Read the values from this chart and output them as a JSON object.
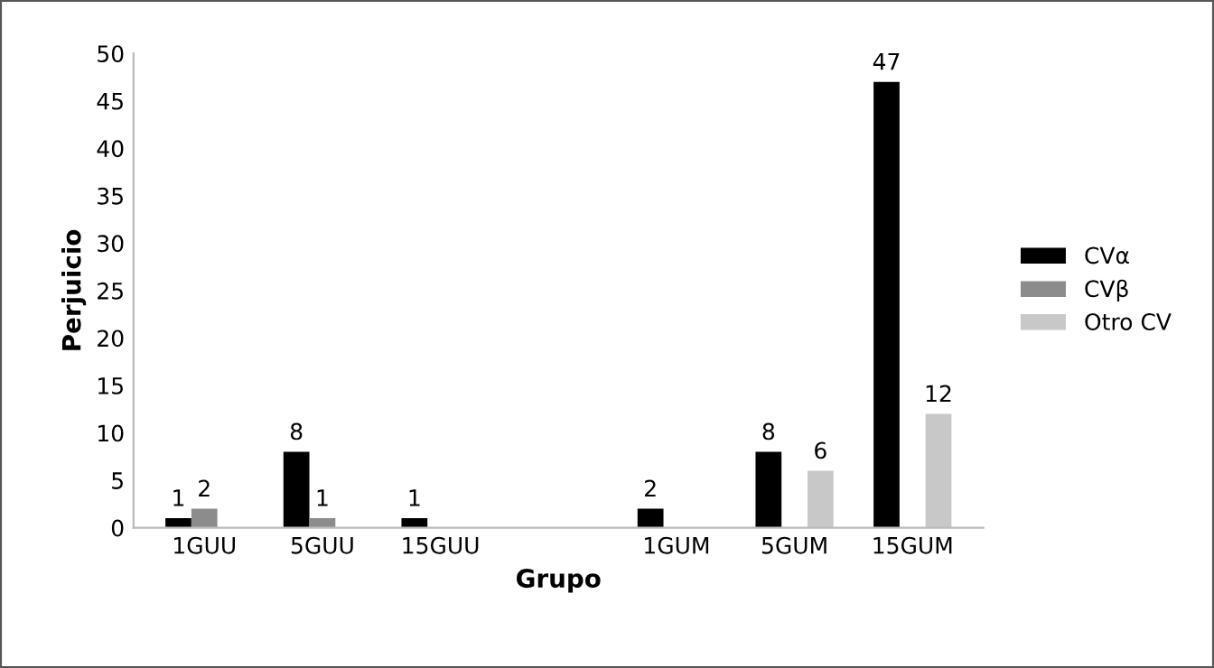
{
  "chart_data": {
    "type": "bar",
    "xlabel": "Grupo",
    "ylabel": "Perjuicio",
    "categories": [
      "1GUU",
      "5GUU",
      "15GUU",
      null,
      "1GUM",
      "5GUM",
      "15GUM"
    ],
    "series": [
      {
        "name": "CVα",
        "color": "#000000",
        "values": [
          1,
          8,
          1,
          null,
          2,
          8,
          47
        ]
      },
      {
        "name": "CVβ",
        "color": "#8c8c8c",
        "values": [
          2,
          1,
          null,
          null,
          null,
          null,
          null
        ]
      },
      {
        "name": "Otro CV",
        "color": "#c8c8c8",
        "values": [
          null,
          null,
          null,
          null,
          null,
          6,
          12
        ]
      }
    ],
    "ylim": [
      0,
      50
    ],
    "yticks": [
      0,
      5,
      10,
      15,
      20,
      25,
      30,
      35,
      40,
      45,
      50
    ],
    "grid": false,
    "legend": "right",
    "data_labels": true
  }
}
